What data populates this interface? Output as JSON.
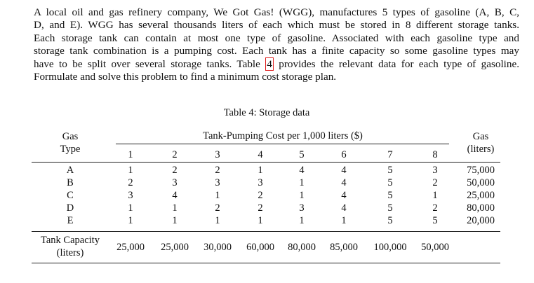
{
  "paragraph": {
    "lines": [
      "A local oil and gas refinery company, We Got Gas! (WGG), manufactures 5 types of gasoline (A, B, C,",
      "D, and E). WGG has several thousands liters of each which must be stored in 8 different storage tanks.",
      "Each storage tank can contain at most one type of gasoline. Associated with each gasoline type and",
      "storage tank combination is a pumping cost. Each tank has a finite capacity so some gasoline types may"
    ],
    "line5_before": "have to be split over several storage tanks. Table",
    "line5_ref": "4",
    "line5_after": "provides the relevant data for each type of gasoline.",
    "last_line": "Formulate and solve this problem to find a minimum cost storage plan."
  },
  "table": {
    "caption": "Table 4: Storage data",
    "type_header": [
      "Gas",
      "Type"
    ],
    "cost_header": "Tank-Pumping Cost per 1,000 liters ($)",
    "amount_header": [
      "Gas",
      "(liters)"
    ],
    "tanks": [
      1,
      2,
      3,
      4,
      5,
      6,
      7,
      8
    ],
    "rows": [
      {
        "type": "A",
        "costs": [
          1,
          2,
          2,
          1,
          4,
          4,
          5,
          3
        ],
        "amount": "75,000"
      },
      {
        "type": "B",
        "costs": [
          2,
          3,
          3,
          3,
          1,
          4,
          5,
          2
        ],
        "amount": "50,000"
      },
      {
        "type": "C",
        "costs": [
          3,
          4,
          1,
          2,
          1,
          4,
          5,
          1
        ],
        "amount": "25,000"
      },
      {
        "type": "D",
        "costs": [
          1,
          1,
          2,
          2,
          3,
          4,
          5,
          2
        ],
        "amount": "80,000"
      },
      {
        "type": "E",
        "costs": [
          1,
          1,
          1,
          1,
          1,
          1,
          5,
          5
        ],
        "amount": "20,000"
      }
    ],
    "capacity_label": [
      "Tank Capacity",
      "(liters)"
    ],
    "capacities": [
      "25,000",
      "25,000",
      "30,000",
      "60,000",
      "80,000",
      "85,000",
      "100,000",
      "50,000"
    ]
  }
}
